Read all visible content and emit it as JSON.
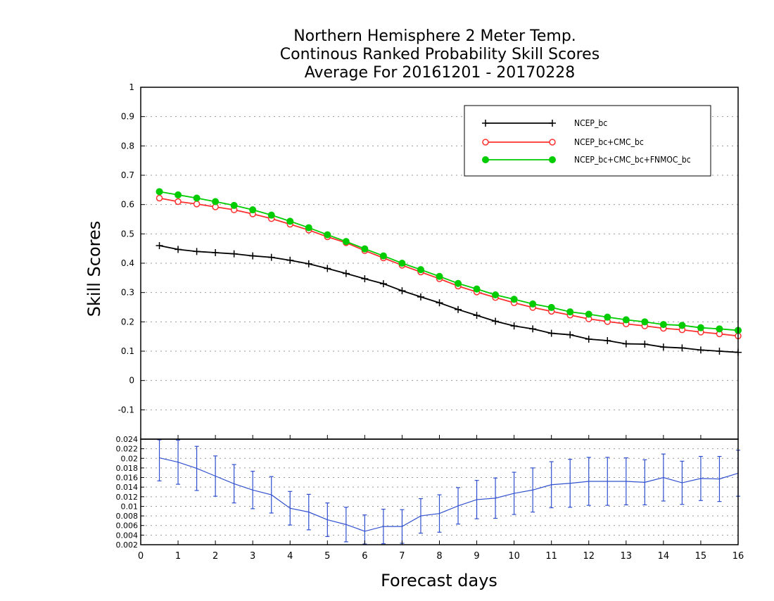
{
  "chart_data": [
    {
      "type": "line",
      "title_lines": [
        "Northern Hemisphere 2 Meter Temp.",
        "Continous Ranked Probability Skill Scores",
        "Average For 20161201 - 20170228"
      ],
      "xlabel": "Forecast days",
      "ylabel": "Skill Scores",
      "xlim": [
        0,
        16
      ],
      "ylim": [
        -0.2,
        1
      ],
      "xticks": [
        "0",
        "1",
        "2",
        "3",
        "4",
        "5",
        "6",
        "7",
        "8",
        "9",
        "10",
        "11",
        "12",
        "13",
        "14",
        "15",
        "16"
      ],
      "yticks": [
        "1",
        "0.9",
        "0.8",
        "0.7",
        "0.6",
        "0.5",
        "0.4",
        "0.3",
        "0.2",
        "0.1",
        "0",
        "-0.1"
      ],
      "grid": true,
      "legend_position": "top-right",
      "x": [
        0.5,
        1,
        1.5,
        2,
        2.5,
        3,
        3.5,
        4,
        4.5,
        5,
        5.5,
        6,
        6.5,
        7,
        7.5,
        8,
        8.5,
        9,
        9.5,
        10,
        10.5,
        11,
        11.5,
        12,
        12.5,
        13,
        13.5,
        14,
        14.5,
        15,
        15.5,
        16
      ],
      "series": [
        {
          "name": "NCEP_bc",
          "color": "#000000",
          "marker": "plus",
          "values": [
            0.46,
            0.447,
            0.44,
            0.436,
            0.432,
            0.425,
            0.42,
            0.41,
            0.398,
            0.382,
            0.365,
            0.347,
            0.33,
            0.306,
            0.285,
            0.265,
            0.242,
            0.222,
            0.202,
            0.186,
            0.176,
            0.161,
            0.156,
            0.141,
            0.136,
            0.125,
            0.124,
            0.114,
            0.111,
            0.104,
            0.1,
            0.096
          ]
        },
        {
          "name": "NCEP_bc+CMC_bc",
          "color": "#ff3030",
          "marker": "open-circle",
          "values": [
            0.622,
            0.61,
            0.602,
            0.592,
            0.582,
            0.568,
            0.552,
            0.533,
            0.513,
            0.49,
            0.47,
            0.443,
            0.418,
            0.393,
            0.37,
            0.347,
            0.322,
            0.302,
            0.283,
            0.265,
            0.249,
            0.236,
            0.223,
            0.21,
            0.201,
            0.193,
            0.186,
            0.178,
            0.173,
            0.165,
            0.159,
            0.152
          ]
        },
        {
          "name": "NCEP_bc+CMC_bc+FNMOC_bc",
          "color": "#00cc00",
          "marker": "filled-circle",
          "values": [
            0.644,
            0.633,
            0.622,
            0.61,
            0.597,
            0.582,
            0.564,
            0.543,
            0.521,
            0.497,
            0.474,
            0.449,
            0.425,
            0.4,
            0.378,
            0.355,
            0.331,
            0.312,
            0.292,
            0.277,
            0.261,
            0.249,
            0.234,
            0.226,
            0.216,
            0.207,
            0.2,
            0.191,
            0.188,
            0.18,
            0.176,
            0.171
          ]
        }
      ]
    },
    {
      "type": "line",
      "xlim": [
        0,
        16
      ],
      "ylim": [
        0.002,
        0.024
      ],
      "yticks": [
        "0.024",
        "0.022",
        "0.02",
        "0.018",
        "0.016",
        "0.014",
        "0.012",
        "0.01",
        "0.008",
        "0.006",
        "0.004",
        "0.002"
      ],
      "color": "#3050d0",
      "x": [
        0.5,
        1,
        1.5,
        2,
        2.5,
        3,
        3.5,
        4,
        4.5,
        5,
        5.5,
        6,
        6.5,
        7,
        7.5,
        8,
        8.5,
        9,
        9.5,
        10,
        10.5,
        11,
        11.5,
        12,
        12.5,
        13,
        13.5,
        14,
        14.5,
        15,
        15.5,
        16
      ],
      "values": [
        0.0201,
        0.0192,
        0.0179,
        0.0163,
        0.0147,
        0.0134,
        0.0124,
        0.0096,
        0.0088,
        0.0072,
        0.0062,
        0.0048,
        0.0058,
        0.0058,
        0.008,
        0.0085,
        0.0101,
        0.0114,
        0.0117,
        0.0127,
        0.0134,
        0.0145,
        0.0148,
        0.0152,
        0.0152,
        0.0152,
        0.015,
        0.016,
        0.0149,
        0.0158,
        0.0157,
        0.0169
      ],
      "errors": [
        0.0048,
        0.0046,
        0.0046,
        0.0042,
        0.004,
        0.0039,
        0.0038,
        0.0035,
        0.0037,
        0.0035,
        0.0036,
        0.0034,
        0.0036,
        0.0035,
        0.0036,
        0.0039,
        0.0038,
        0.004,
        0.0042,
        0.0044,
        0.0046,
        0.0048,
        0.005,
        0.005,
        0.005,
        0.0049,
        0.0047,
        0.0049,
        0.0045,
        0.0046,
        0.0047,
        0.0048
      ]
    }
  ]
}
